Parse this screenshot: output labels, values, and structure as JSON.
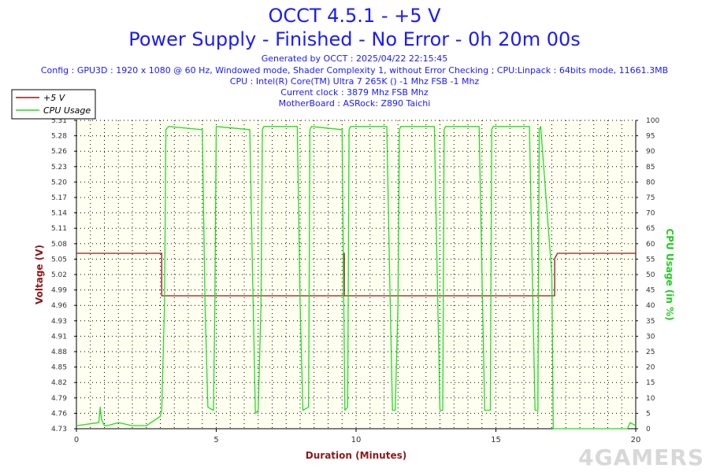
{
  "header": {
    "title": "OCCT 4.5.1 - +5 V",
    "subtitle": "Power Supply - Finished - No Error - 0h 20m 00s",
    "info": [
      "Generated by OCCT : 2025/04/22 22:15:45",
      "Config : GPU3D : 1920 x 1080 @ 60 Hz, Windowed mode, Shader Complexity 1, without Error Checking ; CPU:Linpack : 64bits mode, 11661.3MB",
      "CPU : Intel(R) Core(TM) Ultra 7 265K () -1 Mhz FSB -1 Mhz",
      "Current clock : 3879 Mhz FSB  Mhz",
      "MotherBoard : ASRock: Z890 Taichi"
    ]
  },
  "watermark": "4GAMERS",
  "colors": {
    "voltage": "#8b1a1a",
    "cpu": "#22dd22",
    "title": "#1a1aff",
    "plot_bg": "#fffff0",
    "grid": "#000000"
  },
  "chart_data": {
    "type": "line",
    "xlabel": "Duration (Minutes)",
    "ylabel_left": "Voltage (V)",
    "ylabel_right": "CPU Usage (in %)",
    "xlim": [
      0,
      20
    ],
    "ylim_left": [
      4.73,
      5.31
    ],
    "ylim_right": [
      0,
      100
    ],
    "x_ticks": [
      0,
      5,
      10,
      15,
      20
    ],
    "y_ticks_left": [
      "4.73",
      "4.76",
      "4.79",
      "4.82",
      "4.85",
      "4.88",
      "4.91",
      "4.93",
      "4.96",
      "4.99",
      "5.02",
      "5.05",
      "5.08",
      "5.11",
      "5.14",
      "5.17",
      "5.20",
      "5.23",
      "5.26",
      "5.28",
      "5.31"
    ],
    "y_ticks_right": [
      0,
      5,
      10,
      15,
      20,
      25,
      30,
      35,
      40,
      45,
      50,
      55,
      60,
      65,
      70,
      75,
      80,
      85,
      90,
      95,
      100
    ],
    "grid": true,
    "legend_position": "top-left",
    "series": [
      {
        "name": "+5 V",
        "axis": "left",
        "color": "#8b1a1a",
        "x": [
          0,
          3.05,
          3.05,
          3.05,
          3.05,
          3.1,
          3.1,
          9.55,
          9.55,
          9.58,
          9.58,
          9.6,
          9.6,
          17.1,
          17.1,
          17.2,
          17.2,
          20
        ],
        "y": [
          5.06,
          5.06,
          5.05,
          4.98,
          4.98,
          4.98,
          4.98,
          4.98,
          5.06,
          5.06,
          4.98,
          4.98,
          4.98,
          4.98,
          5.05,
          5.06,
          5.06,
          5.06
        ]
      },
      {
        "name": "CPU Usage",
        "axis": "right",
        "color": "#22dd22",
        "x": [
          0,
          0.8,
          0.85,
          0.9,
          1.0,
          1.1,
          1.5,
          2.0,
          2.5,
          3.0,
          3.05,
          3.15,
          3.2,
          3.3,
          4.5,
          4.6,
          4.7,
          4.9,
          4.95,
          5.0,
          6.2,
          6.3,
          6.4,
          6.5,
          6.6,
          6.65,
          6.7,
          7.9,
          8.0,
          8.1,
          8.3,
          8.35,
          8.4,
          9.5,
          9.55,
          9.6,
          9.7,
          9.75,
          9.8,
          11.1,
          11.2,
          11.3,
          11.4,
          11.5,
          11.55,
          11.6,
          12.8,
          12.9,
          13.0,
          13.1,
          13.15,
          13.2,
          14.4,
          14.5,
          14.6,
          14.8,
          14.85,
          14.9,
          16.2,
          16.3,
          16.4,
          16.5,
          16.55,
          16.6,
          17.0,
          17.05,
          17.1,
          17.5,
          18.0,
          19.0,
          19.7,
          19.8,
          20
        ],
        "y": [
          1,
          2,
          7,
          3,
          1,
          1,
          2,
          1,
          1,
          4,
          6,
          40,
          97,
          98,
          97,
          40,
          7,
          6,
          40,
          98,
          97,
          50,
          5,
          6,
          40,
          97,
          98,
          98,
          40,
          6,
          7,
          97,
          98,
          97,
          50,
          6,
          7,
          97,
          98,
          98,
          50,
          6,
          6,
          40,
          97,
          98,
          98,
          50,
          6,
          6,
          97,
          98,
          98,
          50,
          6,
          6,
          97,
          98,
          98,
          50,
          6,
          6,
          97,
          98,
          50,
          0,
          0,
          0,
          0,
          0,
          0,
          2,
          1
        ]
      }
    ]
  }
}
